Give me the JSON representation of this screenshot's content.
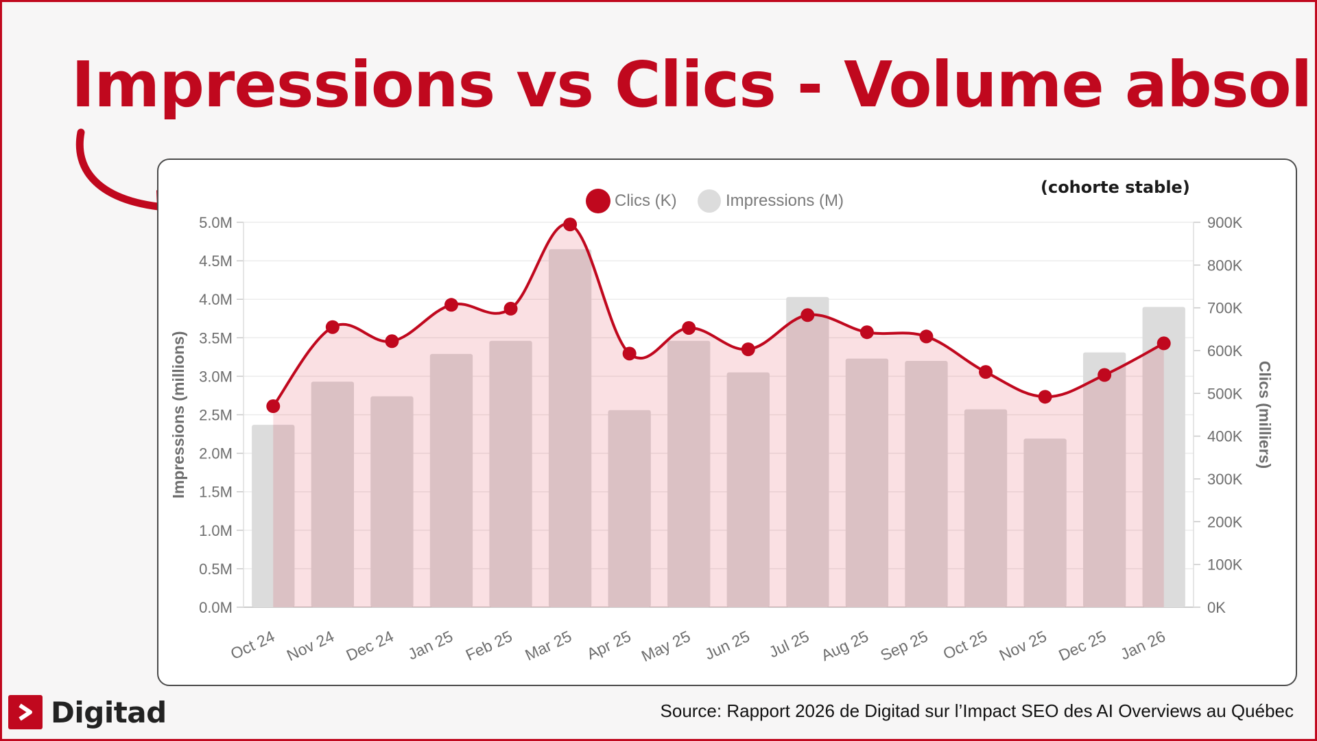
{
  "page": {
    "title": "Impressions vs Clics - Volume absolu",
    "subtitle": "(cohorte stable)",
    "source": "Source: Rapport 2026 de Digitad sur l’Impact SEO des AI Overviews au Québec",
    "brand": "Digitad",
    "colors": {
      "accent": "#c0081e",
      "bars": "#dcdcdc",
      "area": "#f8e3e5"
    }
  },
  "chart_data": {
    "type": "bar",
    "categories": [
      "Oct 24",
      "Nov 24",
      "Dec 24",
      "Jan 25",
      "Feb 25",
      "Mar 25",
      "Apr 25",
      "May 25",
      "Jun 25",
      "Jul 25",
      "Aug 25",
      "Sep 25",
      "Oct 25",
      "Nov 25",
      "Dec 25",
      "Jan 26"
    ],
    "series": [
      {
        "name": "Impressions (M)",
        "type": "bar",
        "axis": "left",
        "values": [
          2.37,
          2.93,
          2.74,
          3.29,
          3.46,
          4.65,
          2.56,
          3.46,
          3.05,
          4.03,
          3.23,
          3.2,
          2.57,
          2.19,
          3.31,
          3.9
        ]
      },
      {
        "name": "Clics (K)",
        "type": "line",
        "axis": "right",
        "values": [
          470,
          655,
          622,
          707,
          698,
          895,
          593,
          653,
          603,
          683,
          643,
          633,
          550,
          492,
          543,
          617
        ]
      }
    ],
    "y_left": {
      "label": "Impressions (millions)",
      "range": [
        0,
        5
      ],
      "ticks": [
        "0.0M",
        "0.5M",
        "1.0M",
        "1.5M",
        "2.0M",
        "2.5M",
        "3.0M",
        "3.5M",
        "4.0M",
        "4.5M",
        "5.0M"
      ]
    },
    "y_right": {
      "label": "Clics (milliers)",
      "range": [
        0,
        900
      ],
      "ticks": [
        "0K",
        "100K",
        "200K",
        "300K",
        "400K",
        "500K",
        "600K",
        "700K",
        "800K",
        "900K"
      ]
    },
    "legend": {
      "placement": "top-center"
    },
    "grid": true
  }
}
